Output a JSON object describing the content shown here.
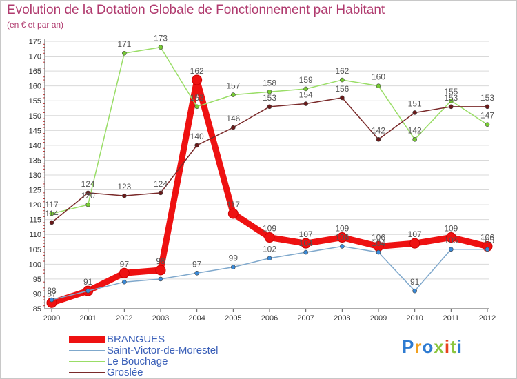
{
  "title": "Evolution de la Dotation Globale de Fonctionnement par Habitant",
  "subtitle": "(en € et par an)",
  "logo_text": "Proxiti",
  "colors": {
    "title": "#b03a6e",
    "grid": "#d9d9d9",
    "axis": "#555555",
    "legend_text": "#3a5fb8"
  },
  "chart_data": {
    "type": "line",
    "title": "Evolution de la Dotation Globale de Fonctionnement par Habitant",
    "subtitle": "(en € et par an)",
    "xlabel": "",
    "ylabel": "",
    "ylim": [
      85,
      175
    ],
    "yticks": [
      85,
      90,
      95,
      100,
      105,
      110,
      115,
      120,
      125,
      130,
      135,
      140,
      145,
      150,
      155,
      160,
      165,
      170,
      175
    ],
    "categories": [
      "2000",
      "2001",
      "2002",
      "2003",
      "2004",
      "2005",
      "2006",
      "2007",
      "2008",
      "2009",
      "2010",
      "2011",
      "2012"
    ],
    "grid": "horizontal",
    "legend_position": "bottom-left",
    "series": [
      {
        "name": "BRANGUES",
        "color": "#ee1111",
        "marker_color": "#ee1111",
        "bold": true,
        "values": [
          87,
          91,
          97,
          98,
          162,
          117,
          109,
          107,
          109,
          106,
          107,
          109,
          106
        ],
        "labels": [
          "87",
          "91",
          "97",
          "98",
          "162",
          "117",
          "109",
          "107",
          "109",
          "106",
          "107",
          "109",
          "106"
        ]
      },
      {
        "name": "Saint-Victor-de-Morestel",
        "color": "#7fa8cc",
        "marker_color": "#3a8ad8",
        "bold": false,
        "values": [
          88,
          91,
          94,
          95,
          97,
          99,
          102,
          104,
          106,
          104,
          91,
          105,
          105
        ],
        "labels": [
          "88",
          "",
          "",
          "",
          "97",
          "99",
          "102",
          "104",
          "106",
          "104",
          "91",
          "105",
          "105"
        ]
      },
      {
        "name": "Le Bouchage",
        "color": "#99dd66",
        "marker_color": "#77cc33",
        "bold": false,
        "values": [
          117,
          120,
          171,
          173,
          153,
          157,
          158,
          159,
          162,
          160,
          142,
          155,
          147
        ],
        "labels": [
          "117",
          "120",
          "171",
          "173",
          "153",
          "157",
          "158",
          "159",
          "162",
          "160",
          "142",
          "155",
          "147"
        ]
      },
      {
        "name": "Groslée",
        "color": "#7a2a2a",
        "marker_color": "#6a1a1a",
        "bold": false,
        "values": [
          114,
          124,
          123,
          124,
          140,
          146,
          153,
          154,
          156,
          142,
          151,
          153,
          153
        ],
        "labels": [
          "114",
          "124",
          "123",
          "124",
          "140",
          "146",
          "153",
          "154",
          "156",
          "142",
          "151",
          "153",
          "153"
        ]
      }
    ]
  }
}
